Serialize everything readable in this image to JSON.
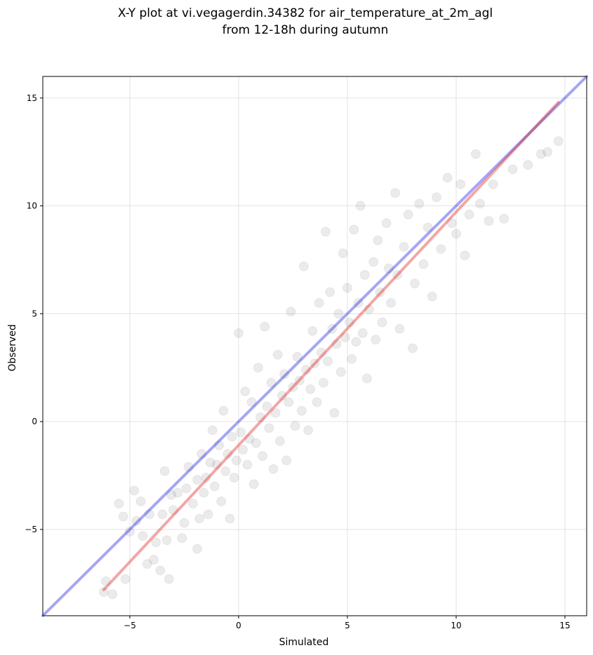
{
  "chart_data": {
    "type": "scatter",
    "title_lines": [
      "X-Y plot at vi.vegagerdin.34382 for air_temperature_at_2m_agl",
      "from 12-18h during autumn"
    ],
    "xlabel": "Simulated",
    "ylabel": "Observed",
    "xlim": [
      -9,
      16
    ],
    "ylim": [
      -9,
      16
    ],
    "xticks": [
      -5,
      0,
      5,
      10,
      15
    ],
    "yticks": [
      -5,
      0,
      5,
      10,
      15
    ],
    "xtick_labels": [
      "−5",
      "0",
      "5",
      "10",
      "15"
    ],
    "ytick_labels": [
      "−5",
      "0",
      "5",
      "10",
      "15"
    ],
    "grid": true,
    "legend": "none",
    "colors": {
      "points": "#000000",
      "identity_line": "#0000e0",
      "fit_line": "#e00000"
    },
    "series": [
      {
        "kind": "scatter",
        "points": [
          [
            -6.1,
            -7.4
          ],
          [
            -6.2,
            -7.9
          ],
          [
            -5.8,
            -8.0
          ],
          [
            -5.5,
            -3.8
          ],
          [
            -5.3,
            -4.4
          ],
          [
            -5.2,
            -7.3
          ],
          [
            -5.0,
            -5.1
          ],
          [
            -4.8,
            -3.2
          ],
          [
            -4.7,
            -4.6
          ],
          [
            -4.5,
            -3.7
          ],
          [
            -4.4,
            -5.3
          ],
          [
            -4.2,
            -6.6
          ],
          [
            -4.1,
            -4.3
          ],
          [
            -3.9,
            -6.4
          ],
          [
            -3.8,
            -5.6
          ],
          [
            -3.6,
            -6.9
          ],
          [
            -3.5,
            -4.3
          ],
          [
            -3.4,
            -2.3
          ],
          [
            -3.3,
            -5.5
          ],
          [
            -3.2,
            -7.3
          ],
          [
            -3.1,
            -3.4
          ],
          [
            -3.0,
            -4.1
          ],
          [
            -2.8,
            -3.3
          ],
          [
            -2.6,
            -5.4
          ],
          [
            -2.5,
            -4.7
          ],
          [
            -2.4,
            -3.1
          ],
          [
            -2.3,
            -2.1
          ],
          [
            -2.1,
            -3.8
          ],
          [
            -1.9,
            -5.9
          ],
          [
            -1.9,
            -2.7
          ],
          [
            -1.8,
            -4.5
          ],
          [
            -1.7,
            -1.5
          ],
          [
            -1.6,
            -3.3
          ],
          [
            -1.5,
            -2.6
          ],
          [
            -1.4,
            -4.3
          ],
          [
            -1.3,
            -1.9
          ],
          [
            -1.2,
            -0.4
          ],
          [
            -1.1,
            -3.0
          ],
          [
            -1.0,
            -2.0
          ],
          [
            -0.9,
            -1.1
          ],
          [
            -0.8,
            -3.7
          ],
          [
            -0.7,
            0.5
          ],
          [
            -0.6,
            -2.3
          ],
          [
            -0.5,
            -1.5
          ],
          [
            -0.4,
            -4.5
          ],
          [
            -0.3,
            -0.7
          ],
          [
            -0.2,
            -2.6
          ],
          [
            -0.1,
            -1.8
          ],
          [
            0.0,
            4.1
          ],
          [
            0.1,
            -0.5
          ],
          [
            0.2,
            -1.3
          ],
          [
            0.3,
            1.4
          ],
          [
            0.4,
            -2.0
          ],
          [
            0.5,
            -0.8
          ],
          [
            0.6,
            0.9
          ],
          [
            0.7,
            -2.9
          ],
          [
            0.8,
            -1.0
          ],
          [
            0.9,
            2.5
          ],
          [
            1.0,
            0.2
          ],
          [
            1.1,
            -1.6
          ],
          [
            1.2,
            4.4
          ],
          [
            1.3,
            0.7
          ],
          [
            1.4,
            -0.3
          ],
          [
            1.5,
            1.8
          ],
          [
            1.6,
            -2.2
          ],
          [
            1.7,
            0.4
          ],
          [
            1.8,
            3.1
          ],
          [
            1.9,
            -0.9
          ],
          [
            2.0,
            1.2
          ],
          [
            2.1,
            2.2
          ],
          [
            2.2,
            -1.8
          ],
          [
            2.3,
            0.9
          ],
          [
            2.4,
            5.1
          ],
          [
            2.5,
            1.6
          ],
          [
            2.6,
            -0.2
          ],
          [
            2.7,
            3.0
          ],
          [
            2.8,
            1.9
          ],
          [
            2.9,
            0.5
          ],
          [
            3.0,
            7.2
          ],
          [
            3.1,
            2.4
          ],
          [
            3.2,
            -0.4
          ],
          [
            3.3,
            1.5
          ],
          [
            3.4,
            4.2
          ],
          [
            3.5,
            2.7
          ],
          [
            3.6,
            0.9
          ],
          [
            3.7,
            5.5
          ],
          [
            3.8,
            3.2
          ],
          [
            3.9,
            1.8
          ],
          [
            4.0,
            8.8
          ],
          [
            4.1,
            2.8
          ],
          [
            4.2,
            6.0
          ],
          [
            4.3,
            4.3
          ],
          [
            4.4,
            0.4
          ],
          [
            4.5,
            3.6
          ],
          [
            4.6,
            5.0
          ],
          [
            4.7,
            2.3
          ],
          [
            4.8,
            7.8
          ],
          [
            4.9,
            3.9
          ],
          [
            5.0,
            6.2
          ],
          [
            5.1,
            4.6
          ],
          [
            5.2,
            2.9
          ],
          [
            5.3,
            8.9
          ],
          [
            5.4,
            3.7
          ],
          [
            5.5,
            5.5
          ],
          [
            5.6,
            10.0
          ],
          [
            5.7,
            4.1
          ],
          [
            5.8,
            6.8
          ],
          [
            5.9,
            2.0
          ],
          [
            6.0,
            5.2
          ],
          [
            6.2,
            7.4
          ],
          [
            6.3,
            3.8
          ],
          [
            6.4,
            8.4
          ],
          [
            6.5,
            6.0
          ],
          [
            6.6,
            4.6
          ],
          [
            6.8,
            9.2
          ],
          [
            6.9,
            7.1
          ],
          [
            7.0,
            5.5
          ],
          [
            7.2,
            10.6
          ],
          [
            7.3,
            6.8
          ],
          [
            7.4,
            4.3
          ],
          [
            7.6,
            8.1
          ],
          [
            7.8,
            9.6
          ],
          [
            8.0,
            3.4
          ],
          [
            8.1,
            6.4
          ],
          [
            8.3,
            10.1
          ],
          [
            8.5,
            7.3
          ],
          [
            8.7,
            9.0
          ],
          [
            8.9,
            5.8
          ],
          [
            9.1,
            10.4
          ],
          [
            9.3,
            8.0
          ],
          [
            9.6,
            11.3
          ],
          [
            9.8,
            9.2
          ],
          [
            10.0,
            8.7
          ],
          [
            10.2,
            11.0
          ],
          [
            10.4,
            7.7
          ],
          [
            10.6,
            9.6
          ],
          [
            10.9,
            12.4
          ],
          [
            11.1,
            10.1
          ],
          [
            11.5,
            9.3
          ],
          [
            11.7,
            11.0
          ],
          [
            12.2,
            9.4
          ],
          [
            12.6,
            11.7
          ],
          [
            13.3,
            11.9
          ],
          [
            13.9,
            12.4
          ],
          [
            14.2,
            12.5
          ],
          [
            14.7,
            13.0
          ]
        ]
      },
      {
        "kind": "line",
        "label_role": "identity",
        "points": [
          [
            -9,
            -9
          ],
          [
            16,
            16
          ]
        ]
      },
      {
        "kind": "line",
        "label_role": "fit",
        "points": [
          [
            -6.2,
            -7.8
          ],
          [
            14.7,
            14.8
          ]
        ]
      }
    ]
  }
}
